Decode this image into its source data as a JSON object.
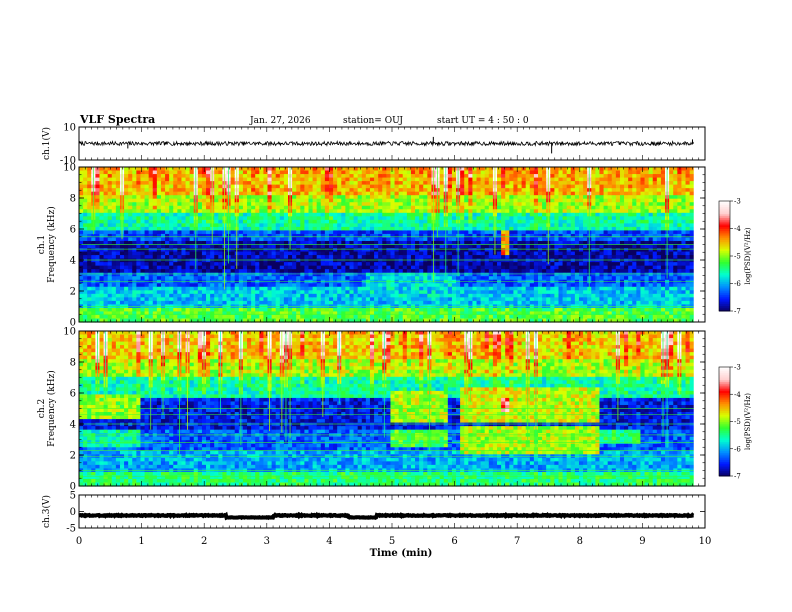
{
  "header": {
    "title": "VLF Spectra",
    "date": "Jan. 27, 2026",
    "station": "station= OUJ",
    "start": "start  UT =   4 : 50 : 0"
  },
  "colors": {
    "waveform": "#000000",
    "colormap": [
      "#0a0060",
      "#0018ff",
      "#0090ff",
      "#00ffd0",
      "#30ff30",
      "#d8ff00",
      "#ff9000",
      "#ff0000",
      "#ffd0d0",
      "#ffffff"
    ]
  },
  "chart_data": [
    {
      "type": "line",
      "name": "ch1-waveform",
      "ylabel": "ch.1(V)",
      "ylim": [
        -10,
        10
      ],
      "yticks": [
        "10",
        "-10"
      ],
      "xlim": [
        0,
        10
      ],
      "series": [
        {
          "name": "ch.1",
          "level": 0,
          "noise": 1.2,
          "spikes": [
            {
              "t": 0.78,
              "v": -3
            },
            {
              "t": 5.66,
              "v": 4
            },
            {
              "t": 7.55,
              "v": -6
            },
            {
              "t": 9.8,
              "v": 2.5
            }
          ]
        }
      ]
    },
    {
      "type": "heatmap",
      "name": "ch1-spectrogram",
      "ylabel": "ch.1\nFrequency (kHz)",
      "ylim": [
        0,
        10
      ],
      "xlim": [
        0,
        9.82
      ],
      "yticks": [
        "0",
        "2",
        "4",
        "6",
        "8",
        "10"
      ],
      "colorbar": {
        "label": "log(PSD)(V²/Hz)",
        "ticks": [
          "-3",
          "-4",
          "-5",
          "-6",
          "-7"
        ],
        "range": [
          -7,
          -3
        ]
      },
      "background": [
        {
          "f0": 0,
          "f1": 0.8,
          "v": -5.2
        },
        {
          "f0": 0.8,
          "f1": 2.2,
          "v": -5.9
        },
        {
          "f0": 2.2,
          "f1": 3.2,
          "v": -6.3
        },
        {
          "f0": 3.2,
          "f1": 5.2,
          "v": -6.8
        },
        {
          "f0": 5.2,
          "f1": 6.0,
          "v": -6.4
        },
        {
          "f0": 6.0,
          "f1": 7.0,
          "v": -5.6
        },
        {
          "f0": 7.0,
          "f1": 8.2,
          "v": -5.0
        },
        {
          "f0": 8.2,
          "f1": 10,
          "v": -4.6
        }
      ],
      "patches": [
        {
          "t0": 4.6,
          "t1": 6.0,
          "f0": 1.5,
          "f1": 3.2,
          "v": -5.8
        },
        {
          "t0": 6.76,
          "t1": 6.86,
          "f0": 4.4,
          "f1": 5.8,
          "v": -4.3
        }
      ],
      "hlines": [
        0.5,
        1.0,
        2.6,
        3.1,
        4.0,
        4.7,
        5.0,
        5.5
      ],
      "seed": 11
    },
    {
      "type": "heatmap",
      "name": "ch2-spectrogram",
      "ylabel": "ch.2\nFrequency (kHz)",
      "ylim": [
        0,
        10
      ],
      "xlim": [
        0,
        9.82
      ],
      "yticks": [
        "0",
        "2",
        "4",
        "6",
        "8",
        "10"
      ],
      "colorbar": {
        "label": "log(PSD)(V²/Hz)",
        "ticks": [
          "-3",
          "-4",
          "-5",
          "-6",
          "-7"
        ],
        "range": [
          -7,
          -3
        ]
      },
      "background": [
        {
          "f0": 0,
          "f1": 0.8,
          "v": -5.4
        },
        {
          "f0": 0.8,
          "f1": 2.2,
          "v": -6.0
        },
        {
          "f0": 2.2,
          "f1": 3.6,
          "v": -6.3
        },
        {
          "f0": 3.6,
          "f1": 5.6,
          "v": -6.6
        },
        {
          "f0": 5.6,
          "f1": 7.0,
          "v": -5.6
        },
        {
          "f0": 7.0,
          "f1": 8.2,
          "v": -5.0
        },
        {
          "f0": 8.2,
          "f1": 10,
          "v": -4.7
        }
      ],
      "patches": [
        {
          "t0": 0,
          "t1": 1.0,
          "f0": 4.4,
          "f1": 6.0,
          "v": -5.0
        },
        {
          "t0": 0,
          "t1": 1.0,
          "f0": 2.6,
          "f1": 3.6,
          "v": -5.6
        },
        {
          "t0": 5.0,
          "t1": 5.9,
          "f0": 4.2,
          "f1": 6.2,
          "v": -4.9
        },
        {
          "t0": 5.0,
          "t1": 5.9,
          "f0": 2.4,
          "f1": 3.6,
          "v": -5.2
        },
        {
          "t0": 6.1,
          "t1": 8.3,
          "f0": 4.2,
          "f1": 6.4,
          "v": -4.8
        },
        {
          "t0": 6.1,
          "t1": 8.3,
          "f0": 2.0,
          "f1": 3.8,
          "v": -4.9
        },
        {
          "t0": 8.3,
          "t1": 9.0,
          "f0": 2.8,
          "f1": 3.6,
          "v": -5.4
        },
        {
          "t0": 6.75,
          "t1": 6.85,
          "f0": 4.8,
          "f1": 5.6,
          "v": -3.6
        }
      ],
      "hlines": [
        0.6,
        1.0,
        1.9,
        2.3,
        2.8,
        3.3,
        4.0,
        4.6,
        5.0
      ],
      "seed": 23
    },
    {
      "type": "line",
      "name": "ch3-waveform",
      "ylabel": "ch.3(V)",
      "ylim": [
        -5,
        5
      ],
      "yticks": [
        "5",
        "0",
        "-5"
      ],
      "xlim": [
        0,
        10
      ],
      "series": [
        {
          "name": "ch.3",
          "level": -1.2,
          "noise": 0.15,
          "steps": [
            {
              "t0": 2.35,
              "t1": 3.1,
              "v": -1.8
            },
            {
              "t0": 4.3,
              "t1": 4.75,
              "v": -1.8
            }
          ],
          "end": 9.82
        }
      ]
    }
  ],
  "xaxis": {
    "label": "Time (min)",
    "ticks": [
      "0",
      "1",
      "2",
      "3",
      "4",
      "5",
      "6",
      "7",
      "8",
      "9",
      "10"
    ],
    "range": [
      0,
      10
    ]
  }
}
